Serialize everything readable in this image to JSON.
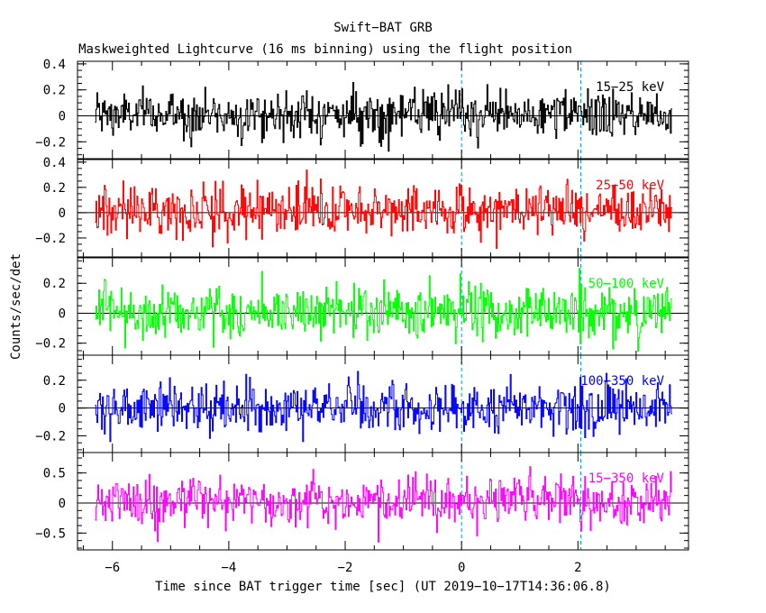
{
  "chart_data": {
    "type": "line",
    "title": "Swift−BAT GRB",
    "subtitle": "Maskweighted Lightcurve (16 ms binning) using the flight position",
    "xlabel": "Time since BAT trigger time [sec] (UT 2019−10−17T14:36:06.8)",
    "ylabel": "Counts/sec/det",
    "xlim": [
      -6.6,
      3.9
    ],
    "x_ticks": [
      -6,
      -4,
      -2,
      0,
      2
    ],
    "x_tick_labels": [
      "−6",
      "−4",
      "−2",
      "0",
      "2"
    ],
    "x_range_data": [
      -6.3,
      3.62
    ],
    "bin_width_sec": 0.016,
    "grid": false,
    "reference_lines": {
      "zero_level": true,
      "vertical_dashed_x": [
        0,
        2.05
      ],
      "vertical_dashed_color": "#00a0c8"
    },
    "panels": [
      {
        "name": "15−25 keV",
        "color": "#000000",
        "ylim": [
          -0.33,
          0.42
        ],
        "y_ticks": [
          -0.2,
          0,
          0.2,
          0.4
        ],
        "y_tick_labels": [
          "−0.2",
          "0",
          "0.2",
          "0.4"
        ],
        "noise_amplitude": 0.09,
        "mean": 0.01
      },
      {
        "name": "25−50 keV",
        "color": "#ff0000",
        "ylim": [
          -0.35,
          0.42
        ],
        "y_ticks": [
          -0.2,
          0,
          0.2,
          0.4
        ],
        "y_tick_labels": [
          "−0.2",
          "0",
          "0.2",
          "0.4"
        ],
        "noise_amplitude": 0.1,
        "mean": 0.02
      },
      {
        "name": "50−100 keV",
        "color": "#00ff00",
        "ylim": [
          -0.28,
          0.37
        ],
        "y_ticks": [
          -0.2,
          0,
          0.2
        ],
        "y_tick_labels": [
          "−0.2",
          "0",
          "0.2"
        ],
        "noise_amplitude": 0.09,
        "mean": 0.01
      },
      {
        "name": "100−350 keV",
        "color": "#0000ff",
        "ylim": [
          -0.32,
          0.38
        ],
        "y_ticks": [
          -0.2,
          0,
          0.2
        ],
        "y_tick_labels": [
          "−0.2",
          "0",
          "0.2"
        ],
        "noise_amplitude": 0.09,
        "mean": 0.0
      },
      {
        "name": "15−350 keV",
        "color": "#ff00ff",
        "ylim": [
          -0.78,
          0.84
        ],
        "y_ticks": [
          -0.5,
          0,
          0.5
        ],
        "y_tick_labels": [
          "−0.5",
          "0",
          "0.5"
        ],
        "noise_amplitude": 0.2,
        "mean": 0.03
      }
    ]
  }
}
